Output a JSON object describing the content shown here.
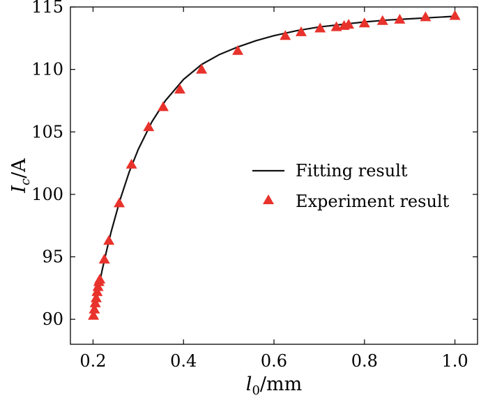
{
  "chart_data": {
    "type": "line",
    "xlabel": {
      "main": "l",
      "sub": "0",
      "unit": "/mm"
    },
    "ylabel": {
      "main": "I",
      "sub": "c",
      "unit": "/A"
    },
    "xlim": [
      0.15,
      1.05
    ],
    "ylim": [
      88,
      115
    ],
    "xticks": [
      0.2,
      0.4,
      0.6,
      0.8,
      1.0
    ],
    "xtick_labels": [
      "0.2",
      "0.4",
      "0.6",
      "0.8",
      "1.0"
    ],
    "yticks": [
      90,
      95,
      100,
      105,
      110,
      115
    ],
    "ytick_labels": [
      "90",
      "95",
      "100",
      "105",
      "110",
      "115"
    ],
    "grid": false,
    "legend_position": "center-right",
    "series": [
      {
        "name": "Fitting result",
        "kind": "line",
        "color": "#111111",
        "x": [
          0.2,
          0.205,
          0.21,
          0.215,
          0.22,
          0.23,
          0.24,
          0.26,
          0.28,
          0.3,
          0.33,
          0.36,
          0.4,
          0.44,
          0.48,
          0.52,
          0.56,
          0.6,
          0.65,
          0.7,
          0.75,
          0.8,
          0.85,
          0.9,
          0.95,
          1.0
        ],
        "y": [
          90.2,
          91.2,
          92.1,
          93.0,
          93.9,
          95.5,
          97.0,
          99.6,
          101.8,
          103.6,
          105.8,
          107.5,
          109.2,
          110.4,
          111.2,
          111.8,
          112.3,
          112.7,
          113.1,
          113.4,
          113.6,
          113.8,
          113.95,
          114.05,
          114.15,
          114.25
        ]
      },
      {
        "name": "Experiment result",
        "kind": "scatter",
        "marker": "triangle",
        "color": "#e8322c",
        "x": [
          0.201,
          0.203,
          0.205,
          0.207,
          0.209,
          0.211,
          0.213,
          0.215,
          0.225,
          0.235,
          0.258,
          0.285,
          0.323,
          0.355,
          0.392,
          0.44,
          0.52,
          0.625,
          0.66,
          0.702,
          0.738,
          0.755,
          0.765,
          0.8,
          0.84,
          0.878,
          0.935,
          1.0
        ],
        "y": [
          90.3,
          90.8,
          91.3,
          91.7,
          92.2,
          92.6,
          93.0,
          93.2,
          94.8,
          96.3,
          99.3,
          102.4,
          105.4,
          107.0,
          108.4,
          110.0,
          111.5,
          112.7,
          113.0,
          113.3,
          113.4,
          113.5,
          113.6,
          113.7,
          113.9,
          114.0,
          114.2,
          114.3
        ]
      }
    ]
  },
  "legend": {
    "items": [
      {
        "label": "Fitting result"
      },
      {
        "label": "Experiment result"
      }
    ]
  }
}
